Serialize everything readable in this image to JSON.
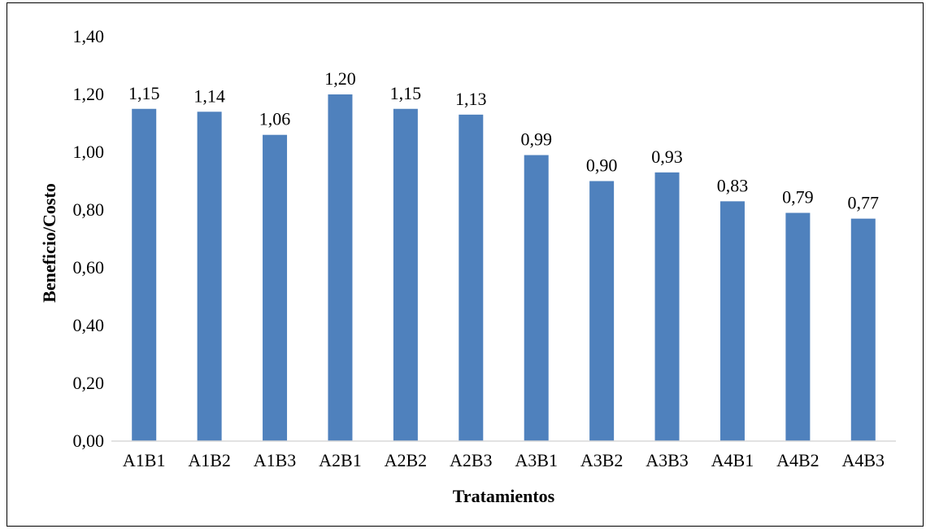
{
  "chart_data": {
    "type": "bar",
    "categories": [
      "A1B1",
      "A1B2",
      "A1B3",
      "A2B1",
      "A2B2",
      "A2B3",
      "A3B1",
      "A3B2",
      "A3B3",
      "A4B1",
      "A4B2",
      "A4B3"
    ],
    "values": [
      1.15,
      1.14,
      1.06,
      1.2,
      1.15,
      1.13,
      0.99,
      0.9,
      0.93,
      0.83,
      0.79,
      0.77
    ],
    "data_labels": [
      "1,15",
      "1,14",
      "1,06",
      "1,20",
      "1,15",
      "1,13",
      "0,99",
      "0,90",
      "0,93",
      "0,83",
      "0,79",
      "0,77"
    ],
    "title": "",
    "xlabel": "Tratamientos",
    "ylabel": "Beneficio/Costo",
    "ylim": [
      0,
      1.4
    ],
    "yticks": [
      0,
      0.2,
      0.4,
      0.6,
      0.8,
      1.0,
      1.2,
      1.4
    ],
    "ytick_labels": [
      "0,00",
      "0,20",
      "0,40",
      "0,60",
      "0,80",
      "1,00",
      "1,20",
      "1,40"
    ],
    "grid": false,
    "legend": "none",
    "bar_color": "#4f81bd"
  }
}
